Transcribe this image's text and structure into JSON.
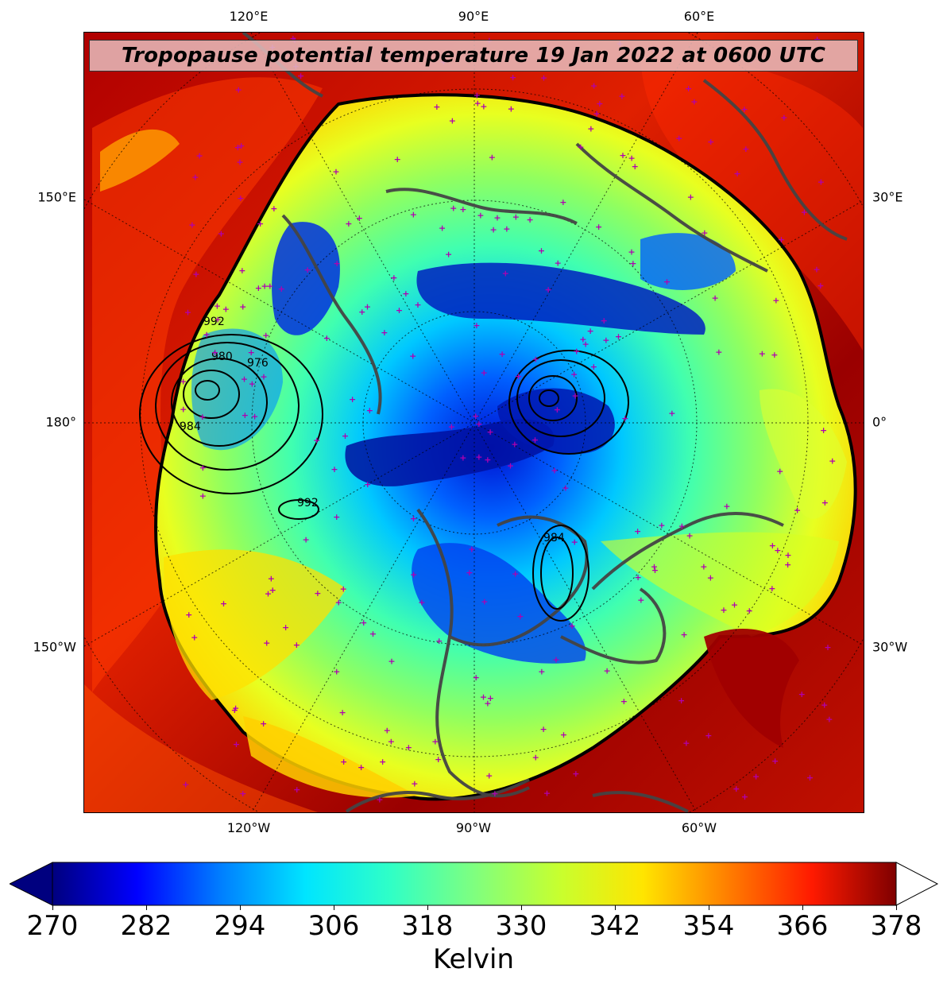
{
  "title": "Tropopause potential temperature 19 Jan 2022 at 0600 UTC",
  "title_bg_color": "#e6bebe",
  "longitude_labels_top": [
    "120°E",
    "90°E",
    "60°E"
  ],
  "longitude_labels_bottom": [
    "120°W",
    "90°W",
    "60°W"
  ],
  "latitude_labels_left": [
    "150°E",
    "180°",
    "150°W"
  ],
  "latitude_labels_right": [
    "30°E",
    "0°",
    "30°W"
  ],
  "pressure_contour_labels": [
    "992",
    "980",
    "976",
    "984",
    "992",
    "984"
  ],
  "station_marker_color": "#b000b0",
  "coastline_color": "#444444",
  "colorbar": {
    "title": "Kelvin",
    "min": 270,
    "max": 378,
    "extend": "both",
    "ticks": [
      "270",
      "282",
      "294",
      "306",
      "318",
      "330",
      "342",
      "354",
      "366",
      "378"
    ],
    "colormap": "jet",
    "colors": [
      "#00007f",
      "#0000ff",
      "#007fff",
      "#00e5ff",
      "#2fffc7",
      "#7fff7f",
      "#c7ff2f",
      "#ffe500",
      "#ff7f00",
      "#ff1a00",
      "#7f0000"
    ]
  }
}
